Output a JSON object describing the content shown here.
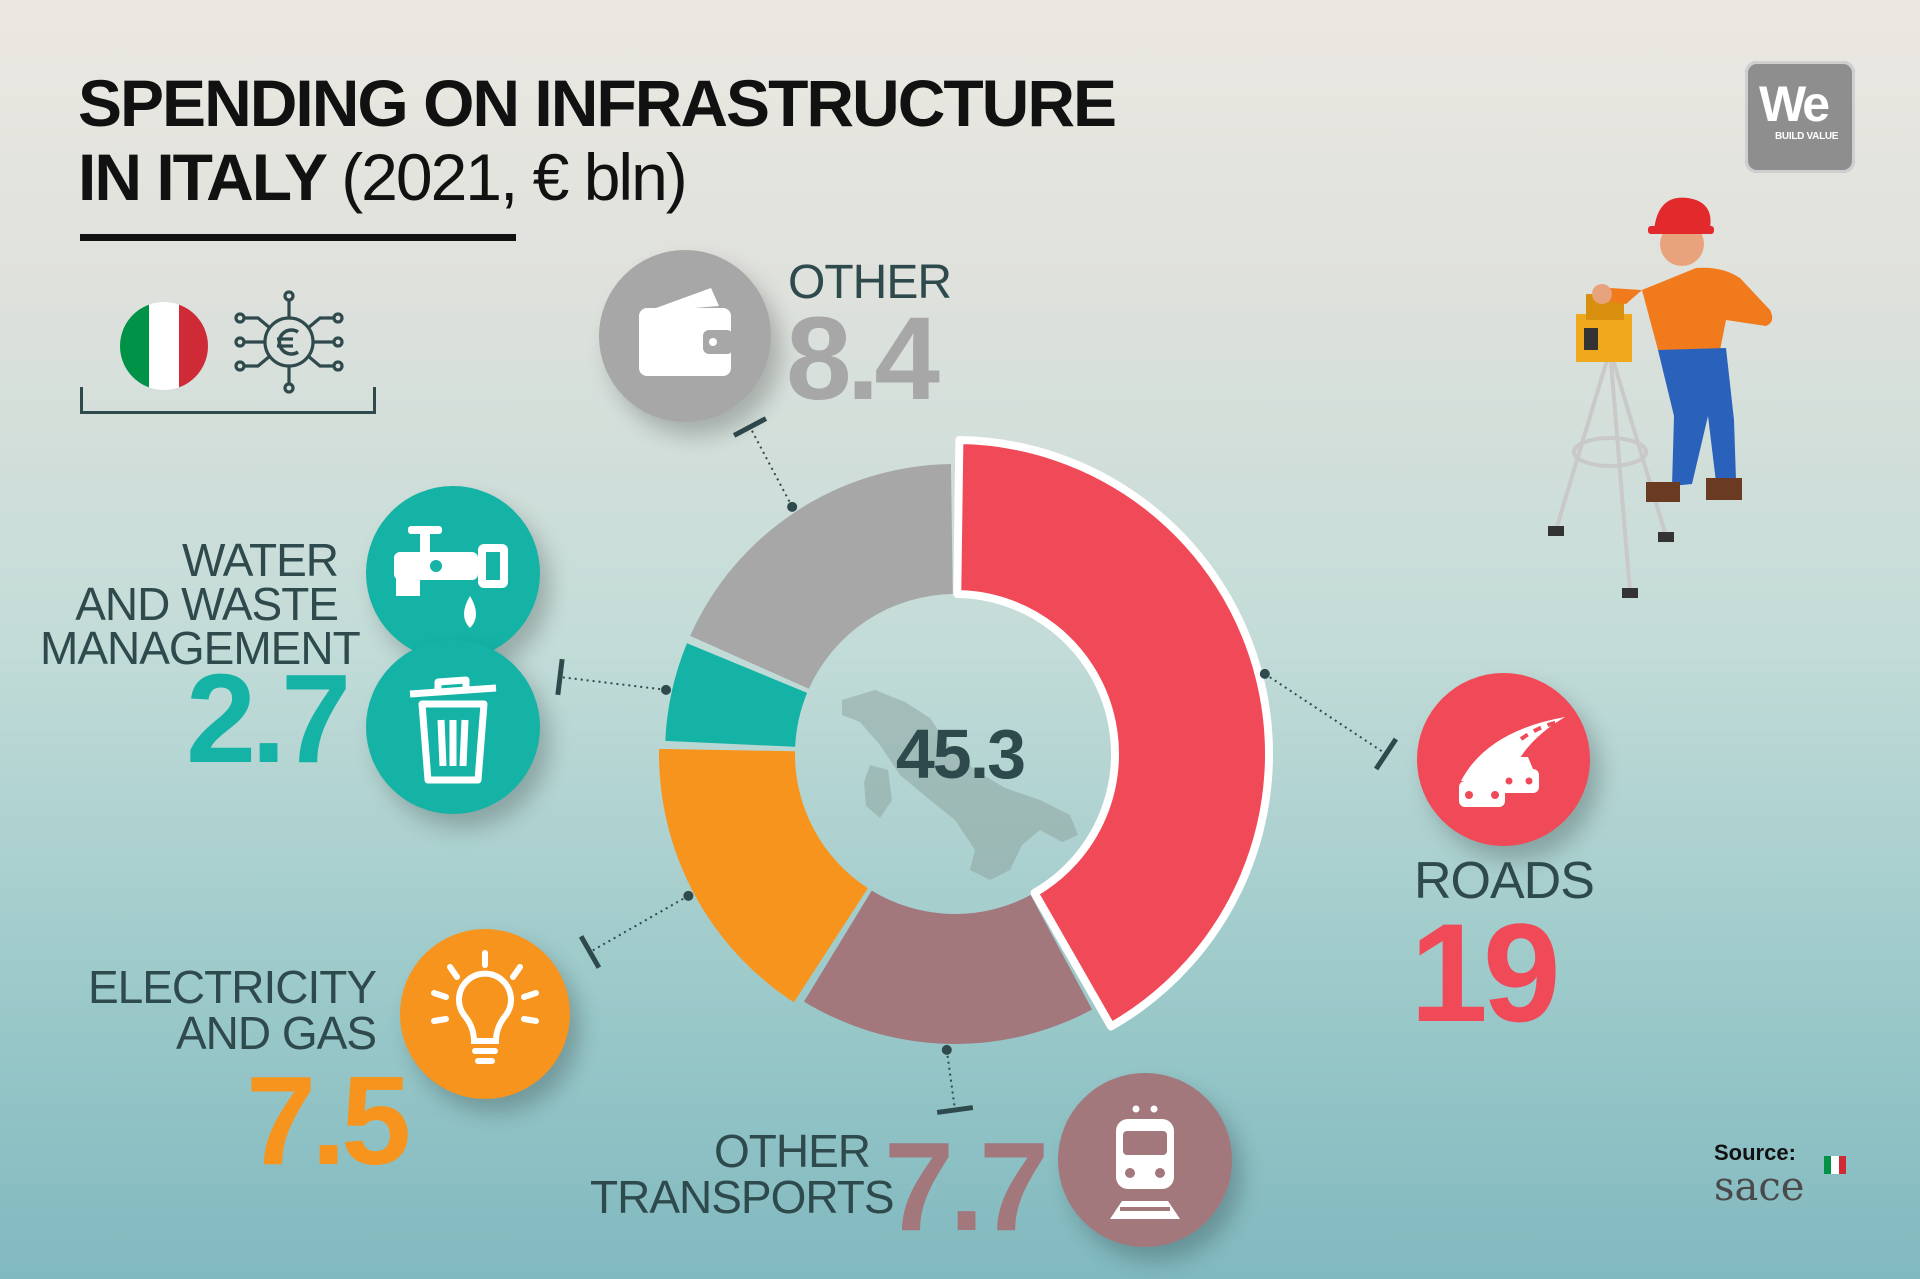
{
  "header": {
    "title_line1": "SPENDING ON INFRASTRUCTURE",
    "title_line2_bold": "IN ITALY",
    "title_line2_regular": "(2021, € bln)"
  },
  "logo": {
    "main": "We",
    "sub": "BUILD VALUE"
  },
  "flag_colors": [
    "#009246",
    "#ffffff",
    "#ce2b37"
  ],
  "chart_data": {
    "type": "pie",
    "title": "SPENDING ON INFRASTRUCTURE IN ITALY (2021, € bln)",
    "total": 45.3,
    "total_label": "45.3",
    "categories": [
      "ROADS",
      "OTHER TRANSPORTS",
      "ELECTRICITY AND GAS",
      "WATER AND WASTE MANAGEMENT",
      "OTHER"
    ],
    "values": [
      19,
      7.7,
      7.5,
      2.7,
      8.4
    ],
    "value_labels": [
      "19",
      "7.7",
      "7.5",
      "2.7",
      "8.4"
    ],
    "colors": [
      "#f04957",
      "#a2787c",
      "#f7941d",
      "#14b3a5",
      "#a7a7a7"
    ],
    "icons": [
      "road-cars-icon",
      "train-icon",
      "lightbulb-icon",
      "faucet-and-trash-icon",
      "wallet-icon"
    ]
  },
  "labels": {
    "roads": "ROADS",
    "other_transports_line1": "OTHER",
    "other_transports_line2": "TRANSPORTS",
    "electricity_line1": "ELECTRICITY",
    "electricity_line2": "AND GAS",
    "water_line1": "WATER",
    "water_line2": "AND WASTE",
    "water_line3": "MANAGEMENT",
    "other": "OTHER"
  },
  "source": {
    "label": "Source:",
    "name": "sace"
  }
}
